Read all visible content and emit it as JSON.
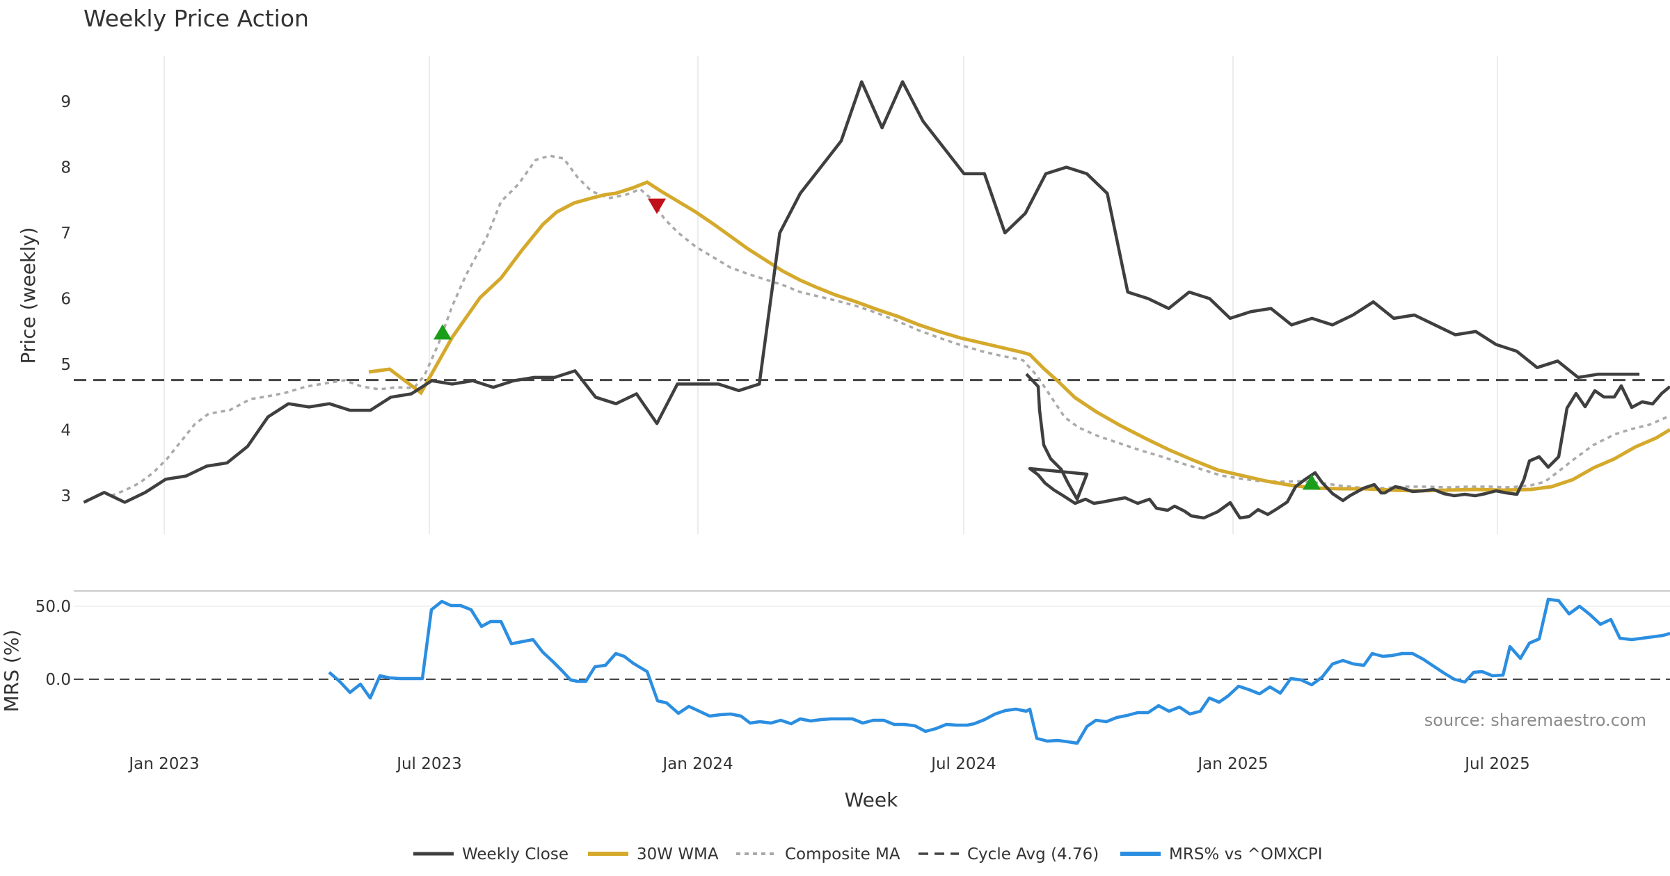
{
  "chart_data": {
    "type": "line",
    "title": "Weekly Price Action",
    "source": "source: sharemaestro.com",
    "xlabel": "Week",
    "x_ticks": [
      "Jan 2023",
      "Jul 2023",
      "Jan 2024",
      "Jul 2024",
      "Jan 2025",
      "Jul 2025"
    ],
    "x_range": [
      "2022-11-07",
      "2025-10-06"
    ],
    "price_panel": {
      "ylabel": "Price (weekly)",
      "ylim": [
        2.5,
        9.75
      ],
      "y_ticks": [
        3,
        4,
        5,
        6,
        7,
        8,
        9
      ],
      "grid": "vertical"
    },
    "mrs_panel": {
      "ylabel": "MRS (%)",
      "ylim": [
        -55,
        62
      ],
      "y_ticks": [
        0,
        50
      ],
      "y_tick_labels": [
        "0.0",
        "50.0"
      ],
      "zero_line": true
    },
    "series": [
      {
        "name": "Weekly Close",
        "panel": "price",
        "color": "#3f3f3f",
        "style": "solid",
        "points": [
          [
            "2022-11-07",
            2.9
          ],
          [
            "2022-11-21",
            3.05
          ],
          [
            "2022-12-05",
            2.9
          ],
          [
            "2022-12-19",
            3.05
          ],
          [
            "2023-01-02",
            3.25
          ],
          [
            "2023-01-16",
            3.3
          ],
          [
            "2023-01-30",
            3.45
          ],
          [
            "2023-02-13",
            3.5
          ],
          [
            "2023-02-27",
            3.75
          ],
          [
            "2023-03-13",
            4.2
          ],
          [
            "2023-03-27",
            4.4
          ],
          [
            "2023-04-10",
            4.35
          ],
          [
            "2023-04-24",
            4.4
          ],
          [
            "2023-05-08",
            4.3
          ],
          [
            "2023-05-22",
            4.3
          ],
          [
            "2023-06-05",
            4.5
          ],
          [
            "2023-06-19",
            4.55
          ],
          [
            "2023-07-03",
            4.75
          ],
          [
            "2023-07-17",
            4.7
          ],
          [
            "2023-07-31",
            4.75
          ],
          [
            "2023-08-14",
            4.65
          ],
          [
            "2023-08-28",
            4.75
          ],
          [
            "2023-09-11",
            4.8
          ],
          [
            "2023-09-25",
            4.8
          ],
          [
            "2023-10-09",
            4.9
          ],
          [
            "2023-10-23",
            4.5
          ],
          [
            "2023-11-06",
            4.4
          ],
          [
            "2023-11-20",
            4.55
          ],
          [
            "2023-12-04",
            4.1
          ],
          [
            "2023-12-18",
            4.7
          ],
          [
            "2024-01-01",
            4.7
          ],
          [
            "2024-01-15",
            4.7
          ],
          [
            "2024-01-29",
            4.6
          ],
          [
            "2024-02-12",
            4.7
          ],
          [
            "2024-02-26",
            7.0
          ],
          [
            "2024-03-11",
            7.6
          ],
          [
            "2024-03-25",
            8.0
          ],
          [
            "2024-04-08",
            8.4
          ],
          [
            "2024-04-22",
            9.3
          ],
          [
            "2024-05-06",
            8.6
          ],
          [
            "2024-05-20",
            9.3
          ],
          [
            "2024-06-03",
            8.7
          ],
          [
            "2024-06-17",
            8.3
          ],
          [
            "2024-07-01",
            7.9
          ],
          [
            "2024-07-15",
            7.9
          ],
          [
            "2024-07-29",
            7.0
          ],
          [
            "2024-08-12",
            7.3
          ],
          [
            "2024-08-26",
            7.9
          ],
          [
            "2024-09-09",
            8.0
          ],
          [
            "2024-09-23",
            7.9
          ],
          [
            "2024-10-07",
            7.6
          ],
          [
            "2024-10-21",
            6.1
          ],
          [
            "2024-11-04",
            6.0
          ],
          [
            "2024-11-18",
            5.85
          ],
          [
            "2024-12-02",
            6.1
          ],
          [
            "2024-12-16",
            6.0
          ],
          [
            "2024-12-30",
            5.7
          ],
          [
            "2025-01-13",
            5.8
          ],
          [
            "2025-01-27",
            5.85
          ],
          [
            "2025-02-10",
            5.6
          ],
          [
            "2025-02-24",
            5.7
          ],
          [
            "2025-03-10",
            5.6
          ],
          [
            "2025-03-24",
            5.75
          ],
          [
            "2025-04-07",
            5.95
          ],
          [
            "2025-04-21",
            5.7
          ],
          [
            "2025-05-05",
            5.75
          ],
          [
            "2025-05-19",
            5.6
          ],
          [
            "2025-06-02",
            5.45
          ],
          [
            "2025-06-16",
            5.5
          ],
          [
            "2025-06-30",
            5.3
          ],
          [
            "2025-07-14",
            5.2
          ],
          [
            "2025-07-28",
            4.95
          ],
          [
            "2025-08-11",
            5.05
          ],
          [
            "2025-08-25",
            4.8
          ],
          [
            "2025-09-08",
            4.85
          ],
          [
            "2025-09-22",
            4.85
          ],
          [
            "2025-10-06",
            4.85
          ]
        ]
      }
    ],
    "legend": {
      "placement": "bottom-center",
      "entries": [
        "Weekly Close",
        "30W WMA",
        "Composite MA",
        "Cycle Avg (4.76)",
        "MRS% vs ^OMXCPI"
      ]
    }
  },
  "colors": {
    "close": "#3f3f3f",
    "wma": "#d4a92c",
    "composite": "#aaaaaa",
    "cycle": "#444444",
    "mrs": "#2b8ee0",
    "buy_marker": "#1a9e1a",
    "sell_marker": "#c0101a"
  }
}
